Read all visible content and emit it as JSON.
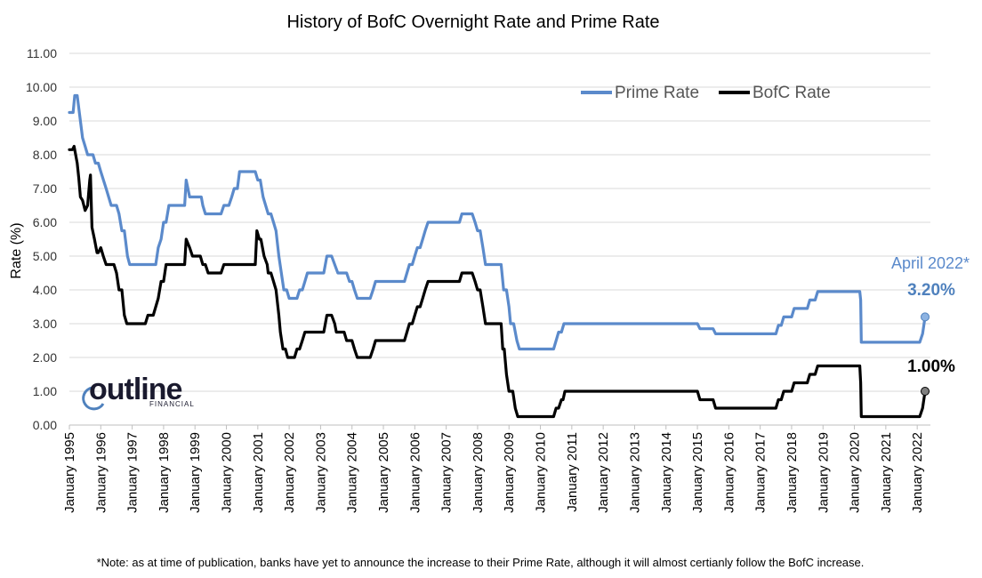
{
  "colors": {
    "prime": "#5B8ACB",
    "bofc": "#000000",
    "grid": "#D9D9D9"
  },
  "logo": {
    "name": "outline",
    "sub": "FINANCIAL"
  },
  "note": "*Note: as at time of publication, banks have yet to announce the increase to their Prime Rate, although it will almost certianly follow the BofC increase.",
  "annotations": {
    "prime_date": "April 2022*",
    "prime_value": "3.20%",
    "bofc_value": "1.00%"
  },
  "chart_data": {
    "type": "line",
    "title": "History of BofC Overnight Rate and Prime Rate",
    "ylabel": "Rate (%)",
    "xlabel": "",
    "ylim": [
      0,
      11
    ],
    "xlim": [
      1995.0,
      2022.42
    ],
    "y_ticks": [
      "0.00",
      "1.00",
      "2.00",
      "3.00",
      "4.00",
      "5.00",
      "6.00",
      "7.00",
      "8.00",
      "9.00",
      "10.00",
      "11.00"
    ],
    "x_ticks": [
      "January 1995",
      "January 1996",
      "January 1997",
      "January 1998",
      "January 1999",
      "January 2000",
      "January 2001",
      "January 2002",
      "January 2003",
      "January 2004",
      "January 2005",
      "January 2006",
      "January 2007",
      "January 2008",
      "January 2009",
      "January 2010",
      "January 2011",
      "January 2012",
      "January 2013",
      "January 2014",
      "January 2015",
      "January 2016",
      "January 2017",
      "January 2018",
      "January 2019",
      "January 2020",
      "January 2021",
      "January 2022"
    ],
    "grid": true,
    "legend": "top-right",
    "series": [
      {
        "name": "Prime Rate",
        "points": [
          [
            1995.0,
            9.25
          ],
          [
            1995.12,
            9.25
          ],
          [
            1995.17,
            9.75
          ],
          [
            1995.25,
            9.75
          ],
          [
            1995.35,
            9.0
          ],
          [
            1995.42,
            8.5
          ],
          [
            1995.5,
            8.25
          ],
          [
            1995.58,
            8.0
          ],
          [
            1995.75,
            8.0
          ],
          [
            1995.83,
            7.75
          ],
          [
            1995.92,
            7.75
          ],
          [
            1996.0,
            7.5
          ],
          [
            1996.17,
            7.0
          ],
          [
            1996.33,
            6.5
          ],
          [
            1996.5,
            6.5
          ],
          [
            1996.58,
            6.25
          ],
          [
            1996.67,
            5.75
          ],
          [
            1996.75,
            5.75
          ],
          [
            1996.85,
            5.0
          ],
          [
            1996.92,
            4.75
          ],
          [
            1997.5,
            4.75
          ],
          [
            1997.75,
            4.75
          ],
          [
            1997.83,
            5.25
          ],
          [
            1997.92,
            5.5
          ],
          [
            1998.0,
            6.0
          ],
          [
            1998.08,
            6.0
          ],
          [
            1998.17,
            6.5
          ],
          [
            1998.67,
            6.5
          ],
          [
            1998.72,
            7.25
          ],
          [
            1998.83,
            6.75
          ],
          [
            1998.92,
            6.75
          ],
          [
            1999.2,
            6.75
          ],
          [
            1999.25,
            6.5
          ],
          [
            1999.33,
            6.25
          ],
          [
            1999.83,
            6.25
          ],
          [
            1999.92,
            6.5
          ],
          [
            2000.08,
            6.5
          ],
          [
            2000.17,
            6.75
          ],
          [
            2000.25,
            7.0
          ],
          [
            2000.35,
            7.0
          ],
          [
            2000.42,
            7.5
          ],
          [
            2000.92,
            7.5
          ],
          [
            2001.0,
            7.25
          ],
          [
            2001.08,
            7.25
          ],
          [
            2001.17,
            6.75
          ],
          [
            2001.33,
            6.25
          ],
          [
            2001.42,
            6.25
          ],
          [
            2001.5,
            6.0
          ],
          [
            2001.58,
            5.75
          ],
          [
            2001.67,
            5.0
          ],
          [
            2001.75,
            4.5
          ],
          [
            2001.83,
            4.0
          ],
          [
            2001.92,
            4.0
          ],
          [
            2002.0,
            3.75
          ],
          [
            2002.25,
            3.75
          ],
          [
            2002.33,
            4.0
          ],
          [
            2002.42,
            4.0
          ],
          [
            2002.5,
            4.25
          ],
          [
            2002.58,
            4.5
          ],
          [
            2003.1,
            4.5
          ],
          [
            2003.2,
            5.0
          ],
          [
            2003.35,
            5.0
          ],
          [
            2003.45,
            4.75
          ],
          [
            2003.55,
            4.5
          ],
          [
            2003.83,
            4.5
          ],
          [
            2003.92,
            4.25
          ],
          [
            2004.0,
            4.25
          ],
          [
            2004.08,
            4.0
          ],
          [
            2004.17,
            3.75
          ],
          [
            2004.58,
            3.75
          ],
          [
            2004.67,
            4.0
          ],
          [
            2004.75,
            4.25
          ],
          [
            2005.67,
            4.25
          ],
          [
            2005.75,
            4.5
          ],
          [
            2005.83,
            4.75
          ],
          [
            2005.92,
            4.75
          ],
          [
            2006.0,
            5.0
          ],
          [
            2006.08,
            5.25
          ],
          [
            2006.17,
            5.25
          ],
          [
            2006.25,
            5.5
          ],
          [
            2006.33,
            5.75
          ],
          [
            2006.42,
            6.0
          ],
          [
            2007.42,
            6.0
          ],
          [
            2007.5,
            6.25
          ],
          [
            2007.83,
            6.25
          ],
          [
            2007.92,
            6.0
          ],
          [
            2008.0,
            5.75
          ],
          [
            2008.08,
            5.75
          ],
          [
            2008.17,
            5.25
          ],
          [
            2008.25,
            4.75
          ],
          [
            2008.75,
            4.75
          ],
          [
            2008.83,
            4.0
          ],
          [
            2008.92,
            4.0
          ],
          [
            2009.0,
            3.5
          ],
          [
            2009.05,
            3.0
          ],
          [
            2009.15,
            3.0
          ],
          [
            2009.25,
            2.5
          ],
          [
            2009.33,
            2.25
          ],
          [
            2010.42,
            2.25
          ],
          [
            2010.5,
            2.5
          ],
          [
            2010.58,
            2.75
          ],
          [
            2010.67,
            2.75
          ],
          [
            2010.75,
            3.0
          ],
          [
            2015.0,
            3.0
          ],
          [
            2015.08,
            2.85
          ],
          [
            2015.5,
            2.85
          ],
          [
            2015.58,
            2.7
          ],
          [
            2017.5,
            2.7
          ],
          [
            2017.58,
            2.95
          ],
          [
            2017.67,
            2.95
          ],
          [
            2017.75,
            3.2
          ],
          [
            2018.0,
            3.2
          ],
          [
            2018.08,
            3.45
          ],
          [
            2018.5,
            3.45
          ],
          [
            2018.58,
            3.7
          ],
          [
            2018.75,
            3.7
          ],
          [
            2018.83,
            3.95
          ],
          [
            2020.17,
            3.95
          ],
          [
            2020.2,
            3.7
          ],
          [
            2020.22,
            2.45
          ],
          [
            2022.08,
            2.45
          ],
          [
            2022.17,
            2.7
          ],
          [
            2022.25,
            3.2
          ]
        ]
      },
      {
        "name": "BofC Rate",
        "points": [
          [
            1995.0,
            8.15
          ],
          [
            1995.1,
            8.15
          ],
          [
            1995.15,
            8.25
          ],
          [
            1995.25,
            7.75
          ],
          [
            1995.3,
            7.3
          ],
          [
            1995.35,
            6.75
          ],
          [
            1995.42,
            6.65
          ],
          [
            1995.5,
            6.35
          ],
          [
            1995.58,
            6.5
          ],
          [
            1995.65,
            7.25
          ],
          [
            1995.67,
            7.4
          ],
          [
            1995.72,
            5.85
          ],
          [
            1995.8,
            5.5
          ],
          [
            1995.88,
            5.1
          ],
          [
            1995.92,
            5.1
          ],
          [
            1996.0,
            5.25
          ],
          [
            1996.08,
            5.0
          ],
          [
            1996.17,
            4.75
          ],
          [
            1996.42,
            4.75
          ],
          [
            1996.5,
            4.5
          ],
          [
            1996.58,
            4.0
          ],
          [
            1996.67,
            4.0
          ],
          [
            1996.75,
            3.25
          ],
          [
            1996.83,
            3.0
          ],
          [
            1997.42,
            3.0
          ],
          [
            1997.5,
            3.25
          ],
          [
            1997.67,
            3.25
          ],
          [
            1997.75,
            3.5
          ],
          [
            1997.83,
            3.75
          ],
          [
            1997.92,
            4.25
          ],
          [
            1998.0,
            4.25
          ],
          [
            1998.08,
            4.75
          ],
          [
            1998.67,
            4.75
          ],
          [
            1998.72,
            5.5
          ],
          [
            1998.83,
            5.25
          ],
          [
            1998.92,
            5.0
          ],
          [
            1999.17,
            5.0
          ],
          [
            1999.25,
            4.75
          ],
          [
            1999.33,
            4.75
          ],
          [
            1999.42,
            4.5
          ],
          [
            1999.83,
            4.5
          ],
          [
            1999.92,
            4.75
          ],
          [
            2000.92,
            4.75
          ],
          [
            2000.97,
            5.75
          ],
          [
            2001.05,
            5.5
          ],
          [
            2001.1,
            5.5
          ],
          [
            2001.2,
            5.0
          ],
          [
            2001.3,
            4.75
          ],
          [
            2001.33,
            4.5
          ],
          [
            2001.42,
            4.5
          ],
          [
            2001.5,
            4.25
          ],
          [
            2001.58,
            4.0
          ],
          [
            2001.67,
            3.25
          ],
          [
            2001.72,
            2.75
          ],
          [
            2001.8,
            2.25
          ],
          [
            2001.88,
            2.25
          ],
          [
            2001.95,
            2.0
          ],
          [
            2002.17,
            2.0
          ],
          [
            2002.25,
            2.25
          ],
          [
            2002.33,
            2.25
          ],
          [
            2002.42,
            2.5
          ],
          [
            2002.5,
            2.75
          ],
          [
            2003.1,
            2.75
          ],
          [
            2003.2,
            3.25
          ],
          [
            2003.35,
            3.25
          ],
          [
            2003.45,
            3.0
          ],
          [
            2003.5,
            2.75
          ],
          [
            2003.75,
            2.75
          ],
          [
            2003.83,
            2.5
          ],
          [
            2004.0,
            2.5
          ],
          [
            2004.08,
            2.25
          ],
          [
            2004.17,
            2.0
          ],
          [
            2004.58,
            2.0
          ],
          [
            2004.67,
            2.25
          ],
          [
            2004.75,
            2.5
          ],
          [
            2005.67,
            2.5
          ],
          [
            2005.75,
            2.75
          ],
          [
            2005.83,
            3.0
          ],
          [
            2005.92,
            3.0
          ],
          [
            2006.0,
            3.25
          ],
          [
            2006.08,
            3.5
          ],
          [
            2006.17,
            3.5
          ],
          [
            2006.25,
            3.75
          ],
          [
            2006.33,
            4.0
          ],
          [
            2006.42,
            4.25
          ],
          [
            2007.42,
            4.25
          ],
          [
            2007.5,
            4.5
          ],
          [
            2007.83,
            4.5
          ],
          [
            2007.92,
            4.25
          ],
          [
            2008.0,
            4.0
          ],
          [
            2008.08,
            4.0
          ],
          [
            2008.17,
            3.5
          ],
          [
            2008.25,
            3.0
          ],
          [
            2008.75,
            3.0
          ],
          [
            2008.8,
            2.25
          ],
          [
            2008.85,
            2.25
          ],
          [
            2008.92,
            1.5
          ],
          [
            2009.0,
            1.0
          ],
          [
            2009.12,
            1.0
          ],
          [
            2009.2,
            0.5
          ],
          [
            2009.28,
            0.25
          ],
          [
            2010.42,
            0.25
          ],
          [
            2010.5,
            0.5
          ],
          [
            2010.58,
            0.5
          ],
          [
            2010.67,
            0.75
          ],
          [
            2010.72,
            0.75
          ],
          [
            2010.78,
            1.0
          ],
          [
            2015.0,
            1.0
          ],
          [
            2015.08,
            0.75
          ],
          [
            2015.5,
            0.75
          ],
          [
            2015.58,
            0.5
          ],
          [
            2017.5,
            0.5
          ],
          [
            2017.58,
            0.75
          ],
          [
            2017.67,
            0.75
          ],
          [
            2017.75,
            1.0
          ],
          [
            2018.0,
            1.0
          ],
          [
            2018.08,
            1.25
          ],
          [
            2018.5,
            1.25
          ],
          [
            2018.58,
            1.5
          ],
          [
            2018.75,
            1.5
          ],
          [
            2018.83,
            1.75
          ],
          [
            2020.17,
            1.75
          ],
          [
            2020.2,
            1.25
          ],
          [
            2020.22,
            0.25
          ],
          [
            2022.08,
            0.25
          ],
          [
            2022.17,
            0.5
          ],
          [
            2022.25,
            1.0
          ]
        ]
      }
    ],
    "endpoints": [
      {
        "series": "Prime Rate",
        "x": 2022.25,
        "y": 3.2
      },
      {
        "series": "BofC Rate",
        "x": 2022.25,
        "y": 1.0
      }
    ]
  }
}
